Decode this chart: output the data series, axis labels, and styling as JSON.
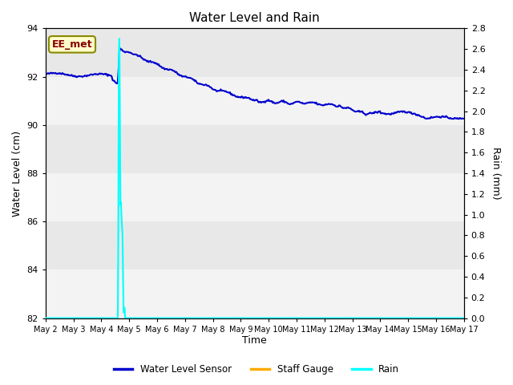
{
  "title": "Water Level and Rain",
  "xlabel": "Time",
  "ylabel_left": "Water Level (cm)",
  "ylabel_right": "Rain (mm)",
  "ylim_left": [
    82,
    94
  ],
  "ylim_right": [
    0.0,
    2.8
  ],
  "yticks_left": [
    82,
    84,
    86,
    88,
    90,
    92,
    94
  ],
  "yticks_right": [
    0.0,
    0.2,
    0.4,
    0.6,
    0.8,
    1.0,
    1.2,
    1.4,
    1.6,
    1.8,
    2.0,
    2.2,
    2.4,
    2.6,
    2.8
  ],
  "fig_bg_color": "#ffffff",
  "plot_bg_color": "#e8e8e8",
  "band_color_light": "#f5f5f5",
  "annotation_text": "EE_met",
  "annotation_box_color": "#ffffcc",
  "annotation_text_color": "#880000",
  "annotation_edge_color": "#888800",
  "water_level_color": "#0000cc",
  "rain_color": "#00ffff",
  "staff_gauge_color": "#ffaa00",
  "legend_labels": [
    "Water Level Sensor",
    "Staff Gauge",
    "Rain"
  ],
  "title_fontsize": 11,
  "axis_label_fontsize": 9,
  "tick_fontsize": 8
}
